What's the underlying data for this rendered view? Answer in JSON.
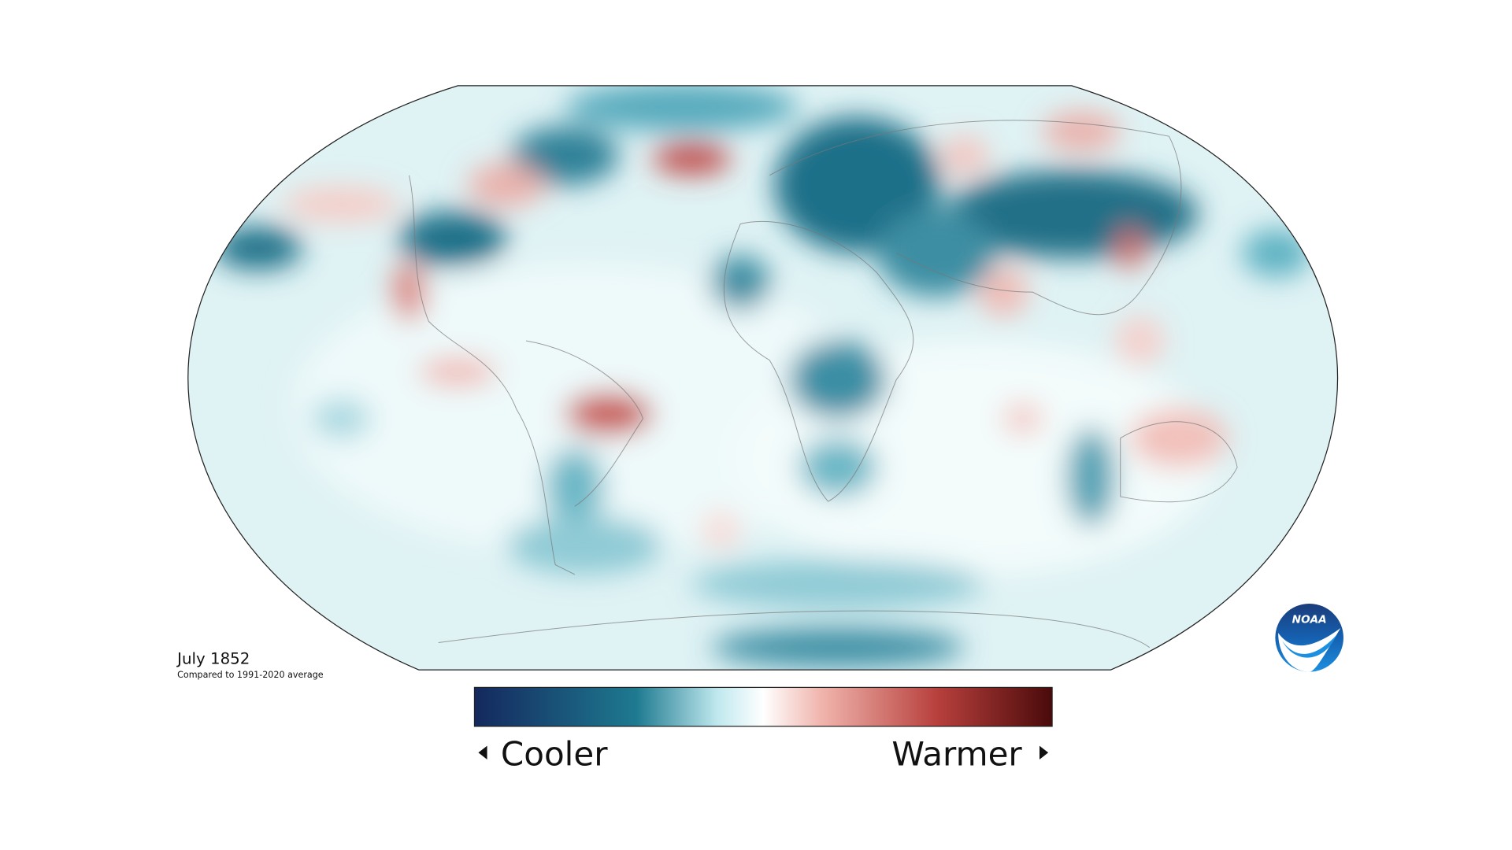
{
  "title": "July 1852",
  "subtitle": "Compared to 1991-2020 average",
  "legend": {
    "low_label": "Cooler",
    "high_label": "Warmer"
  },
  "logo": {
    "text": "NOAA"
  }
}
